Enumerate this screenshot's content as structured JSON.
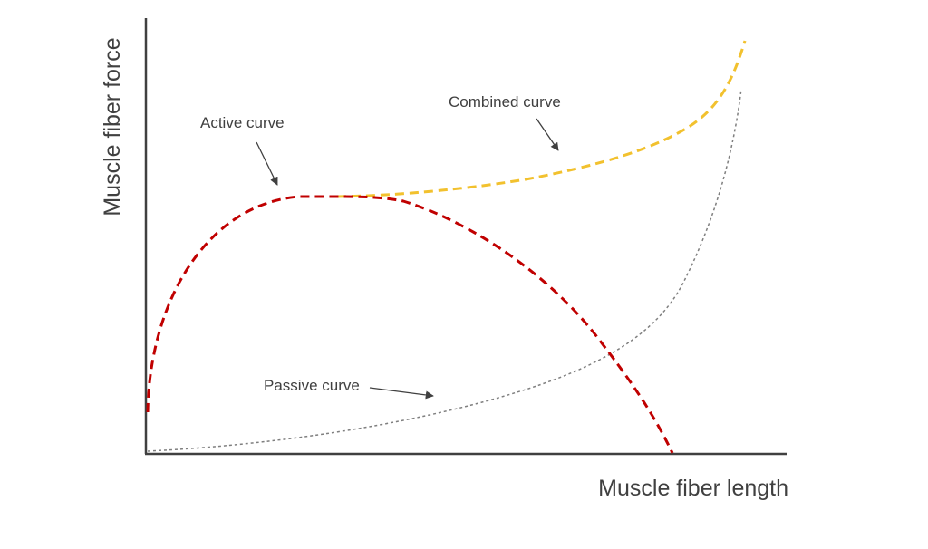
{
  "diagram": {
    "x_axis_title": "Muscle fiber length",
    "y_axis_title": "Muscle fiber force",
    "curves": [
      {
        "id": "active",
        "label": "Active curve",
        "color": "#c00000",
        "style": "dashed"
      },
      {
        "id": "combined",
        "label": "Combined curve",
        "color": "#f2c12e",
        "style": "dashed"
      },
      {
        "id": "passive",
        "label": "Passive curve",
        "color": "#7f7f7f",
        "style": "dotted"
      }
    ],
    "axis_color": "#404040",
    "text_color": "#404040"
  }
}
